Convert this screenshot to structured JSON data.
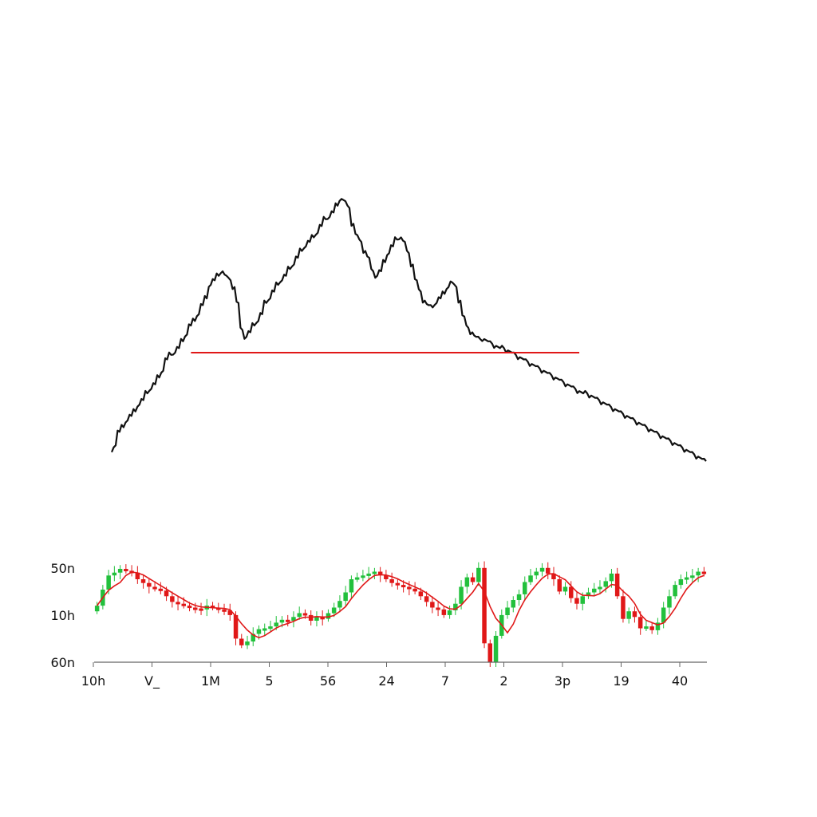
{
  "colors": {
    "background": "#ffffff",
    "price_line": "#111111",
    "neckline": "#e01818",
    "candle_up": "#22c03c",
    "candle_down": "#e01818",
    "moving_average": "#e01818",
    "axis": "#666666"
  },
  "chart_data": [
    {
      "type": "line",
      "title": "",
      "xlabel": "",
      "ylabel": "",
      "grid": false,
      "legend": "none",
      "x": [
        0,
        1,
        2,
        3,
        4,
        5,
        6,
        7,
        8,
        9,
        10,
        11,
        12,
        13,
        14,
        15,
        16,
        17,
        18,
        19,
        20,
        21,
        22,
        23,
        24,
        25,
        26,
        27,
        28,
        29,
        30,
        31,
        32,
        33,
        34,
        35,
        36,
        37,
        38,
        39,
        40,
        41,
        42,
        43,
        44,
        45,
        46,
        47,
        48,
        49,
        50,
        51,
        52,
        53,
        54,
        55,
        56,
        57,
        58,
        59,
        60,
        61,
        62,
        63,
        64,
        65,
        66,
        67,
        68,
        69,
        70,
        71,
        72,
        73,
        74,
        75,
        76,
        77,
        78,
        79,
        80,
        81,
        82,
        83,
        84,
        85,
        86,
        87,
        88,
        89,
        90,
        91,
        92,
        93,
        94,
        95,
        96,
        97,
        98,
        99,
        100,
        101,
        102,
        103,
        104,
        105,
        106,
        107,
        108,
        109,
        110,
        111,
        112,
        113,
        114,
        115,
        116,
        117,
        118,
        119,
        120,
        121,
        122,
        123,
        124,
        125,
        126,
        127,
        128,
        129,
        130,
        131,
        132,
        133,
        134,
        135,
        136,
        137,
        138,
        139,
        140,
        141,
        142,
        143,
        144,
        145,
        146,
        147,
        148,
        149,
        150
      ],
      "y": [
        4,
        7,
        13,
        15,
        18,
        20,
        22,
        25,
        27,
        30,
        32,
        34,
        37,
        40,
        45,
        47,
        48,
        50,
        53,
        56,
        60,
        62,
        65,
        69,
        72,
        78,
        80,
        82,
        84,
        82,
        80,
        77,
        70,
        58,
        55,
        57,
        60,
        62,
        65,
        70,
        72,
        75,
        78,
        80,
        82,
        85,
        87,
        90,
        93,
        95,
        97,
        99,
        101,
        104,
        107,
        108,
        110,
        113,
        116,
        115,
        112,
        105,
        100,
        97,
        93,
        90,
        84,
        82,
        84,
        88,
        92,
        95,
        98,
        99,
        97,
        92,
        87,
        80,
        75,
        71,
        69,
        68,
        70,
        72,
        74,
        77,
        79,
        77,
        71,
        64,
        59,
        57,
        55,
        54,
        54,
        53,
        52,
        51,
        50,
        50,
        49,
        48,
        47,
        46,
        45,
        44,
        43,
        42,
        41,
        40,
        39,
        38,
        37,
        36,
        35,
        34,
        33,
        32,
        31,
        30,
        30,
        29,
        28,
        27,
        26,
        25,
        24,
        23,
        22,
        21,
        20,
        19,
        18,
        17,
        16,
        15,
        14,
        13,
        12,
        11,
        10,
        9,
        8,
        7,
        6,
        5,
        4,
        3,
        2,
        1,
        0
      ],
      "ylim": [
        0,
        120
      ],
      "annotations": [
        {
          "type": "hline",
          "y": 48,
          "x_from": 20,
          "x_to": 118
        }
      ]
    },
    {
      "type": "candlestick",
      "title": "",
      "xlabel": "",
      "ylabel": "",
      "grid": false,
      "legend": "none",
      "y_tick_labels": [
        "50n",
        "10h",
        "60n"
      ],
      "y_tick_values": [
        100,
        50,
        0
      ],
      "x_tick_labels": [
        "10h",
        "V_",
        "1M",
        "5",
        "56",
        "24",
        "7",
        "2",
        "3p",
        "19",
        "40"
      ],
      "x_tick_positions": [
        0,
        9.3,
        18.6,
        27.9,
        37.2,
        46.5,
        55.8,
        65.1,
        74.4,
        83.7,
        93
      ],
      "ylim": [
        0,
        110
      ],
      "close": [
        60,
        77,
        92,
        95,
        99,
        97,
        95,
        88,
        84,
        80,
        78,
        76,
        70,
        64,
        62,
        60,
        58,
        57,
        56,
        60,
        58,
        56,
        55,
        50,
        25,
        18,
        22,
        30,
        35,
        36,
        38,
        42,
        45,
        44,
        48,
        52,
        50,
        44,
        48,
        46,
        52,
        58,
        65,
        74,
        88,
        90,
        92,
        94,
        96,
        92,
        88,
        84,
        82,
        80,
        78,
        75,
        70,
        64,
        58,
        56,
        50,
        55,
        62,
        80,
        90,
        85,
        100,
        20,
        0,
        28,
        50,
        58,
        66,
        72,
        85,
        92,
        96,
        100,
        94,
        88,
        75,
        80,
        68,
        62,
        70,
        74,
        78,
        80,
        86,
        94,
        70,
        46,
        54,
        48,
        36,
        38,
        34,
        42,
        58,
        70,
        82,
        88,
        90,
        92,
        96,
        94
      ]
    }
  ]
}
